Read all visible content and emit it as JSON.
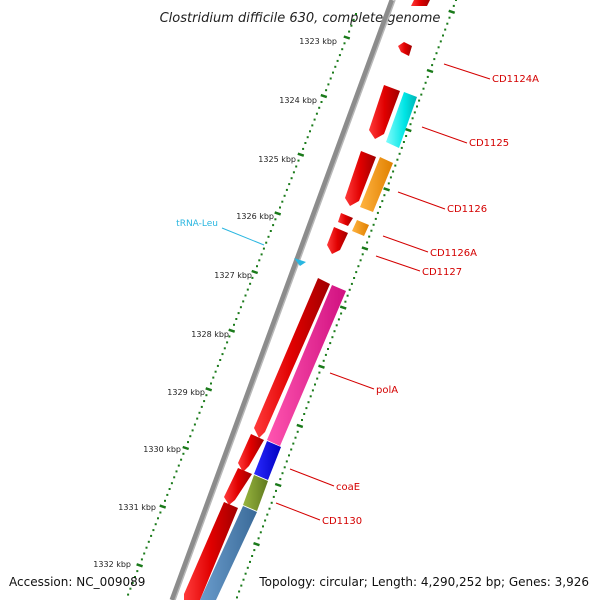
{
  "title": "Clostridium difficile 630, complete genome",
  "footer": {
    "accession": "Accession: NC_009089",
    "topology": "Topology: circular; Length: 4,290,252 bp; Genes: 3,926"
  },
  "kbp_labels": [
    "1323 kbp",
    "1324 kbp",
    "1325 kbp",
    "1326 kbp",
    "1327 kbp",
    "1328 kbp",
    "1329 kbp",
    "1330 kbp",
    "1331 kbp",
    "1332 kbp"
  ],
  "genes": [
    "CD1124A",
    "CD1125",
    "CD1126",
    "CD1126A",
    "CD1127",
    "polA",
    "coaE",
    "CD1130"
  ],
  "trna": "tRNA-Leu",
  "colors": {
    "cds": "#ff0000",
    "tick": "#1a7a1a",
    "backbone": "#8c8c8c",
    "label": "#d40000",
    "trna": "#29b6e0",
    "cog_cyan": "#00e5e5",
    "cog_orange": "#ff9900",
    "cog_pink": "#ff1493",
    "cog_blue": "#0000ee",
    "cog_olive": "#7a9a2a",
    "cog_steel": "#4a7fb0"
  }
}
